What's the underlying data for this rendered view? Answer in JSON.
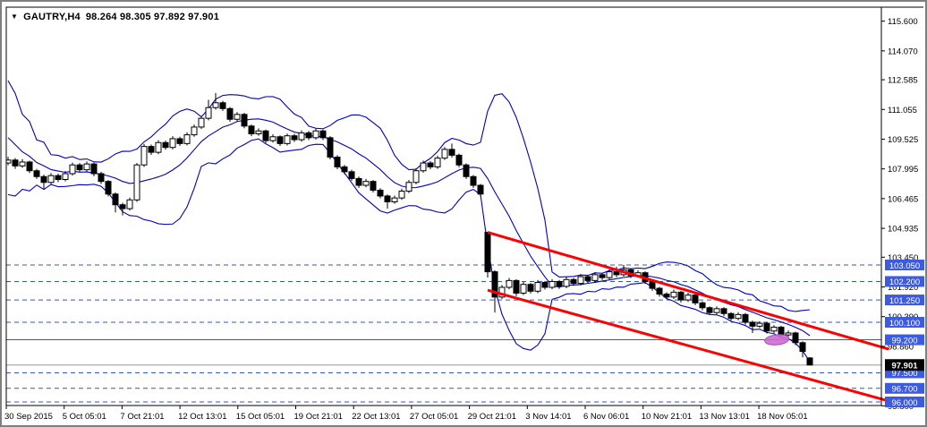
{
  "window": {
    "bg": "#FFFFFF",
    "border": "#808080"
  },
  "header": {
    "dropdown_icon": "▼",
    "symbol": "GAUTRY,H4",
    "quotes": "98.264 98.305 97.892 97.901"
  },
  "chart_data": {
    "type": "candlestick",
    "title": "GAUTRY,H4",
    "symbol": "GAUTRY",
    "timeframe": "H4",
    "current_ohlc": {
      "open": 98.264,
      "high": 98.305,
      "low": 97.892,
      "close": 97.901
    },
    "ylim": [
      95.81,
      116.33
    ],
    "grid": false,
    "legend_position": "none",
    "y_axis_labels": [
      "115.600",
      "114.070",
      "112.585",
      "111.055",
      "109.525",
      "107.995",
      "106.465",
      "104.935",
      "103.450",
      "101.920",
      "100.390",
      "98.860",
      "95.800"
    ],
    "x_axis_labels": [
      "30 Sep 2015",
      "5 Oct 05:01",
      "7 Oct 21:01",
      "12 Oct 13:01",
      "15 Oct 05:01",
      "19 Oct 21:01",
      "22 Oct 13:01",
      "27 Oct 05:01",
      "29 Oct 21:01",
      "3 Nov 14:01",
      "6 Nov 06:01",
      "10 Nov 21:01",
      "13 Nov 13:01",
      "18 Nov 05:01"
    ],
    "level_lines": [
      {
        "price": 103.05,
        "label": "103.050",
        "style": "dashed"
      },
      {
        "price": 102.2,
        "label": "102.200",
        "style": "dashed"
      },
      {
        "price": 101.25,
        "label": "101.250",
        "style": "dashed"
      },
      {
        "price": 100.1,
        "label": "100.100",
        "style": "dashed"
      },
      {
        "price": 99.2,
        "label": "99.200",
        "style": "solid"
      },
      {
        "price": 97.5,
        "label": "97.500",
        "style": "dashed"
      },
      {
        "price": 96.7,
        "label": "96.700",
        "style": "dashed"
      },
      {
        "price": 96.0,
        "label": "96.000",
        "style": "dashed"
      }
    ],
    "bid_price": {
      "value": 97.901,
      "label": "97.901"
    },
    "bollinger": {
      "period": 10,
      "deviation": 2,
      "seed_closes": [
        113.2,
        111.8,
        112.0,
        110.2,
        110.8,
        109.0,
        109.6,
        108.2,
        108.4,
        107.6
      ]
    },
    "channel": {
      "start_bar": 67,
      "top_start_price": 104.73,
      "top_end_price": 98.72,
      "bottom_start_price": 101.75,
      "bottom_end_price": 96.05
    },
    "ellipse": {
      "bar_center": 107.4,
      "price": 99.2,
      "rx_bars": 1.7,
      "ry_price": 0.26
    },
    "colors": {
      "band": "#0000C8",
      "level": "#3355CC",
      "bid_line": "#ADADAD",
      "channel": "#FF0000",
      "ellipse": "#CF6BD3",
      "ellipse_edge": "#A44FC0",
      "badge_bg": "#3C5BE0",
      "badge_text": "#FFFFFF",
      "bid_badge_bg": "#000000",
      "bid_badge_text": "#FFFFFF",
      "bull": "#FFFFFF",
      "bear": "#000000",
      "outline": "#000000",
      "axis_text": "#000000"
    },
    "candles": [
      [
        108.3,
        108.62,
        108.18,
        108.45
      ],
      [
        108.45,
        108.55,
        108.0,
        108.15
      ],
      [
        108.15,
        108.5,
        108.05,
        108.35
      ],
      [
        108.35,
        108.42,
        107.78,
        107.9
      ],
      [
        107.9,
        108.0,
        107.48,
        107.6
      ],
      [
        107.6,
        107.7,
        106.95,
        107.3
      ],
      [
        107.3,
        107.78,
        107.2,
        107.65
      ],
      [
        107.65,
        107.75,
        107.32,
        107.45
      ],
      [
        107.45,
        107.88,
        107.35,
        107.75
      ],
      [
        107.75,
        108.32,
        107.65,
        108.2
      ],
      [
        108.2,
        108.3,
        107.82,
        107.95
      ],
      [
        107.95,
        108.38,
        107.85,
        108.25
      ],
      [
        108.25,
        108.32,
        107.62,
        107.75
      ],
      [
        107.75,
        107.85,
        107.22,
        107.35
      ],
      [
        107.35,
        107.42,
        106.58,
        106.7
      ],
      [
        106.7,
        106.78,
        105.75,
        106.15
      ],
      [
        106.15,
        106.25,
        105.6,
        105.95
      ],
      [
        105.95,
        106.52,
        105.85,
        106.4
      ],
      [
        106.4,
        108.3,
        106.3,
        108.2
      ],
      [
        108.2,
        109.28,
        108.1,
        109.15
      ],
      [
        109.15,
        109.25,
        108.72,
        108.85
      ],
      [
        108.85,
        109.48,
        108.75,
        109.35
      ],
      [
        109.35,
        109.45,
        108.98,
        109.1
      ],
      [
        109.1,
        109.68,
        109.0,
        109.55
      ],
      [
        109.55,
        109.65,
        109.18,
        109.3
      ],
      [
        109.3,
        109.88,
        109.2,
        109.75
      ],
      [
        109.75,
        110.28,
        109.65,
        110.15
      ],
      [
        110.15,
        110.72,
        110.05,
        110.6
      ],
      [
        110.6,
        111.55,
        110.5,
        111.15
      ],
      [
        111.15,
        111.9,
        111.05,
        111.4
      ],
      [
        111.4,
        111.5,
        110.98,
        111.1
      ],
      [
        111.1,
        111.18,
        110.42,
        110.55
      ],
      [
        110.55,
        110.92,
        110.45,
        110.8
      ],
      [
        110.8,
        110.88,
        110.08,
        110.2
      ],
      [
        110.2,
        110.28,
        109.68,
        109.8
      ],
      [
        109.8,
        110.08,
        109.7,
        109.95
      ],
      [
        109.95,
        110.02,
        109.32,
        109.45
      ],
      [
        109.45,
        109.78,
        109.35,
        109.65
      ],
      [
        109.65,
        109.72,
        109.18,
        109.3
      ],
      [
        109.3,
        109.82,
        109.2,
        109.7
      ],
      [
        109.7,
        109.8,
        109.38,
        109.5
      ],
      [
        109.5,
        109.98,
        109.4,
        109.85
      ],
      [
        109.85,
        109.95,
        109.48,
        109.6
      ],
      [
        109.6,
        110.08,
        109.5,
        109.95
      ],
      [
        109.95,
        110.02,
        109.48,
        109.6
      ],
      [
        109.6,
        109.68,
        108.48,
        108.6
      ],
      [
        108.6,
        108.7,
        107.98,
        108.1
      ],
      [
        108.1,
        108.2,
        107.72,
        107.85
      ],
      [
        107.85,
        107.95,
        107.38,
        107.5
      ],
      [
        107.5,
        107.6,
        107.02,
        107.15
      ],
      [
        107.15,
        107.48,
        107.05,
        107.35
      ],
      [
        107.35,
        107.42,
        106.78,
        106.9
      ],
      [
        106.9,
        107.0,
        106.48,
        106.6
      ],
      [
        106.6,
        106.68,
        105.95,
        106.3
      ],
      [
        106.3,
        106.62,
        106.2,
        106.5
      ],
      [
        106.5,
        106.98,
        106.4,
        106.85
      ],
      [
        106.85,
        107.42,
        106.75,
        107.3
      ],
      [
        107.3,
        108.02,
        107.2,
        107.9
      ],
      [
        107.9,
        108.42,
        107.8,
        108.3
      ],
      [
        108.3,
        108.4,
        107.98,
        108.1
      ],
      [
        108.1,
        108.68,
        108.0,
        108.55
      ],
      [
        108.55,
        109.12,
        108.45,
        109.0
      ],
      [
        109.0,
        109.3,
        108.58,
        108.7
      ],
      [
        108.7,
        108.78,
        108.08,
        108.2
      ],
      [
        108.2,
        108.28,
        107.48,
        107.6
      ],
      [
        107.6,
        107.68,
        107.02,
        107.15
      ],
      [
        107.15,
        107.22,
        106.58,
        106.7
      ],
      [
        104.73,
        104.76,
        102.4,
        102.7
      ],
      [
        102.7,
        102.78,
        100.6,
        101.4
      ],
      [
        101.4,
        102.02,
        101.3,
        101.9
      ],
      [
        101.9,
        102.38,
        101.8,
        102.25
      ],
      [
        102.25,
        102.32,
        101.45,
        101.6
      ],
      [
        101.6,
        102.18,
        101.5,
        102.05
      ],
      [
        102.05,
        102.12,
        101.58,
        101.7
      ],
      [
        101.7,
        102.28,
        101.6,
        102.15
      ],
      [
        102.15,
        102.22,
        101.78,
        101.9
      ],
      [
        101.9,
        102.32,
        101.8,
        102.2
      ],
      [
        102.2,
        102.28,
        101.82,
        101.95
      ],
      [
        101.95,
        102.42,
        101.85,
        102.3
      ],
      [
        102.3,
        102.38,
        101.98,
        102.1
      ],
      [
        102.1,
        102.58,
        102.0,
        102.45
      ],
      [
        102.45,
        102.52,
        102.12,
        102.25
      ],
      [
        102.25,
        102.68,
        102.15,
        102.55
      ],
      [
        102.55,
        102.62,
        102.28,
        102.4
      ],
      [
        102.4,
        102.82,
        102.3,
        102.7
      ],
      [
        102.7,
        102.95,
        102.42,
        102.55
      ],
      [
        102.55,
        103.05,
        102.45,
        102.8
      ],
      [
        102.8,
        102.88,
        102.38,
        102.5
      ],
      [
        102.5,
        102.78,
        102.4,
        102.65
      ],
      [
        102.65,
        102.72,
        102.08,
        102.2
      ],
      [
        102.2,
        102.28,
        101.72,
        101.85
      ],
      [
        101.85,
        101.92,
        101.42,
        101.55
      ],
      [
        101.55,
        101.65,
        101.28,
        101.4
      ],
      [
        101.4,
        101.78,
        101.3,
        101.65
      ],
      [
        101.65,
        101.72,
        101.12,
        101.25
      ],
      [
        101.25,
        101.62,
        101.15,
        101.5
      ],
      [
        101.5,
        101.58,
        100.98,
        101.1
      ],
      [
        101.1,
        101.18,
        100.72,
        100.85
      ],
      [
        100.85,
        100.92,
        100.48,
        100.6
      ],
      [
        100.6,
        100.92,
        100.5,
        100.8
      ],
      [
        100.8,
        100.88,
        100.42,
        100.55
      ],
      [
        100.55,
        100.62,
        100.18,
        100.3
      ],
      [
        100.3,
        100.62,
        100.2,
        100.5
      ],
      [
        100.5,
        100.58,
        99.98,
        100.1
      ],
      [
        100.1,
        100.18,
        99.55,
        99.9
      ],
      [
        99.9,
        100.15,
        99.8,
        100.05
      ],
      [
        100.05,
        100.12,
        99.52,
        99.65
      ],
      [
        99.65,
        99.95,
        99.55,
        99.85
      ],
      [
        99.85,
        99.92,
        99.32,
        99.45
      ],
      [
        99.45,
        99.68,
        99.35,
        99.55
      ],
      [
        99.55,
        99.62,
        98.92,
        99.05
      ],
      [
        99.05,
        99.12,
        98.3,
        98.6
      ],
      [
        98.264,
        98.305,
        97.892,
        97.901
      ]
    ]
  }
}
